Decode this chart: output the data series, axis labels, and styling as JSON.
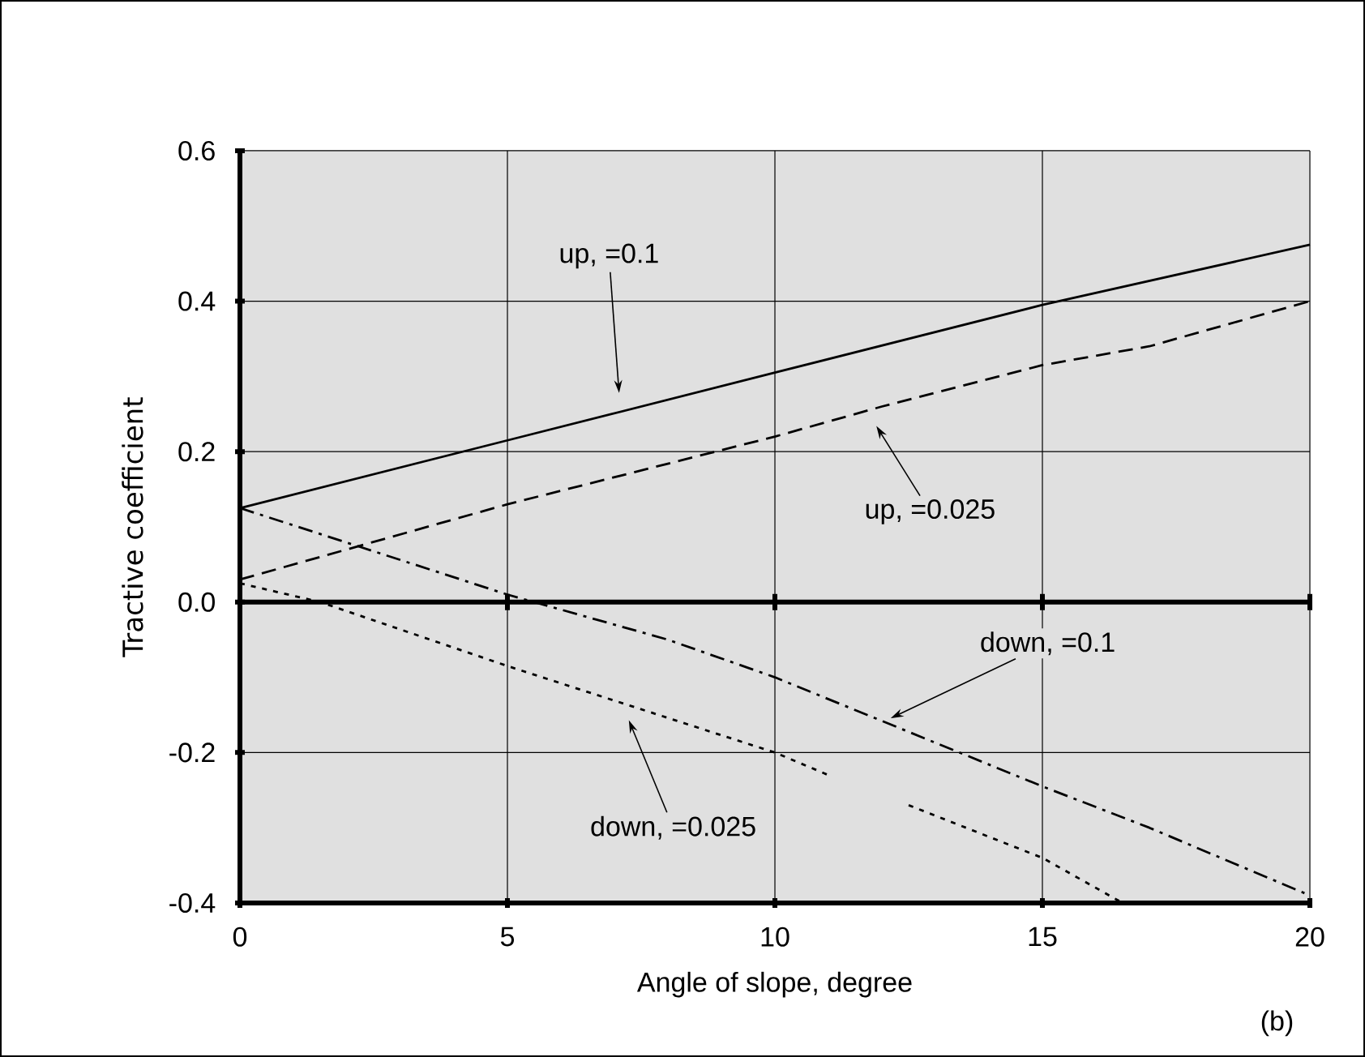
{
  "chart_data": {
    "type": "line",
    "xlabel": "Angle of slope, degree",
    "ylabel": "Tractive coefficient",
    "xlim": [
      0,
      20
    ],
    "xticks": [
      0,
      5,
      10,
      15,
      20
    ],
    "ylim": [
      -0.4,
      0.6
    ],
    "yticks": [
      {
        "value": -0.4,
        "label": "-0.4"
      },
      {
        "value": -0.2,
        "label": "-0.2"
      },
      {
        "value": 0,
        "label": "0.0"
      },
      {
        "value": 0.2,
        "label": "0.2"
      },
      {
        "value": 0.4,
        "label": "0.4"
      },
      {
        "value": 0.6,
        "label": "0.6"
      }
    ],
    "grid": true,
    "series": [
      {
        "color": "#000000",
        "line_style": "solid",
        "x": [
          0,
          5,
          10,
          15,
          20
        ],
        "values": [
          0.125,
          0.215,
          0.305,
          0.395,
          0.475
        ]
      },
      {
        "color": "#000000",
        "line_style": "dashed",
        "x": [
          0,
          5,
          10,
          12,
          15,
          17,
          20
        ],
        "values": [
          0.03,
          0.13,
          0.22,
          0.26,
          0.315,
          0.34,
          0.4
        ]
      },
      {
        "color": "#000000",
        "line_style": "dashdot",
        "x": [
          0,
          5,
          8,
          10,
          15,
          17,
          20
        ],
        "values": [
          0.125,
          0.01,
          -0.05,
          -0.1,
          -0.245,
          -0.3,
          -0.39
        ]
      },
      {
        "color": "#000000",
        "line_style": "dotted",
        "x": [
          0,
          1.5,
          5,
          10,
          11,
          11.8,
          12.5,
          15,
          16.5
        ],
        "values": [
          0.025,
          0.0,
          -0.085,
          -0.2,
          -0.23,
          null,
          -0.27,
          -0.34,
          -0.4
        ]
      }
    ],
    "ref_lines": [
      {
        "axis": "y",
        "value": 0,
        "color": "#000000"
      }
    ],
    "annotations": [
      "up, =0.1",
      "up, =0.025",
      "down, =0.1",
      "down, =0.025",
      "(b)"
    ]
  }
}
